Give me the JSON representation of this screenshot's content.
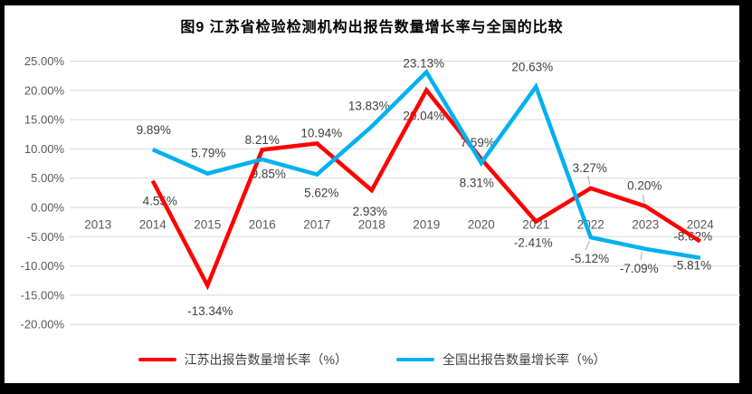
{
  "chart_data": {
    "type": "line",
    "title": "图9  江苏省检验检测机构出报告数量增长率与全国的比较",
    "categories": [
      "2013",
      "2014",
      "2015",
      "2016",
      "2017",
      "2018",
      "2019",
      "2020",
      "2021",
      "2022",
      "2023",
      "2024"
    ],
    "y_axis": {
      "min": -20,
      "max": 25,
      "step": 5,
      "ticks": [
        {
          "value": 25,
          "label": "25.00%"
        },
        {
          "value": 20,
          "label": "20.00%"
        },
        {
          "value": 15,
          "label": "15.00%"
        },
        {
          "value": 10,
          "label": "10.00%"
        },
        {
          "value": 5,
          "label": "5.00%"
        },
        {
          "value": 0,
          "label": "0.00%"
        },
        {
          "value": -5,
          "label": "-5.00%"
        },
        {
          "value": -10,
          "label": "-10.00%"
        },
        {
          "value": -15,
          "label": "-15.00%"
        },
        {
          "value": -20,
          "label": "-20.00%"
        }
      ]
    },
    "grid": true,
    "legend_position": "bottom",
    "series": [
      {
        "id": "jiangsu",
        "name": "江苏出报告数量增长率（%）",
        "color": "#FF0000",
        "points": [
          {
            "year": "2014",
            "value": 4.55,
            "label": "4.55%",
            "label_offset": [
              8,
              27
            ]
          },
          {
            "year": "2015",
            "value": -13.34,
            "label": "-13.34%",
            "label_offset": [
              3,
              33
            ]
          },
          {
            "year": "2016",
            "value": 9.85,
            "label": "9.85%",
            "label_offset": [
              7,
              31
            ]
          },
          {
            "year": "2017",
            "value": 10.94,
            "label": "10.94%",
            "label_offset": [
              5,
              -7
            ]
          },
          {
            "year": "2018",
            "value": 2.93,
            "label": "2.93%",
            "label_offset": [
              -2,
              28
            ]
          },
          {
            "year": "2019",
            "value": 20.04,
            "label": "20.04%",
            "label_offset": [
              -3,
              33
            ]
          },
          {
            "year": "2020",
            "value": 8.31,
            "label": "8.31%",
            "label_offset": [
              -5,
              31
            ]
          },
          {
            "year": "2021",
            "value": -2.41,
            "label": "-2.41%",
            "label_offset": [
              -3,
              28
            ]
          },
          {
            "year": "2022",
            "value": 3.27,
            "label": "3.27%",
            "label_offset": [
              -1,
              -18
            ],
            "leader": [
              -1,
              -4,
              -3,
              -14
            ]
          },
          {
            "year": "2023",
            "value": 0.2,
            "label": "0.20%",
            "label_offset": [
              -1,
              -18
            ],
            "leader": [
              -1,
              -3,
              -3,
              -13
            ]
          },
          {
            "year": "2024",
            "value": -5.81,
            "label": "-5.81%",
            "label_offset": [
              -9,
              31
            ]
          }
        ]
      },
      {
        "id": "national",
        "name": "全国出报告数量增长率（%）",
        "color": "#00B0F0",
        "points": [
          {
            "year": "2014",
            "value": 9.89,
            "label": "9.89%",
            "label_offset": [
              1,
              -17
            ]
          },
          {
            "year": "2015",
            "value": 5.79,
            "label": "5.79%",
            "label_offset": [
              1,
              -18
            ]
          },
          {
            "year": "2016",
            "value": 8.21,
            "label": "8.21%",
            "label_offset": [
              0,
              -17
            ]
          },
          {
            "year": "2017",
            "value": 5.62,
            "label": "5.62%",
            "label_offset": [
              5,
              25
            ]
          },
          {
            "year": "2018",
            "value": 13.83,
            "label": "13.83%",
            "label_offset": [
              -3,
              -18
            ]
          },
          {
            "year": "2019",
            "value": 23.13,
            "label": "23.13%",
            "label_offset": [
              -3,
              -5
            ]
          },
          {
            "year": "2020",
            "value": 7.59,
            "label": "7.59%",
            "label_offset": [
              -4,
              -18
            ]
          },
          {
            "year": "2021",
            "value": 20.63,
            "label": "20.63%",
            "label_offset": [
              -4,
              -17
            ]
          },
          {
            "year": "2022",
            "value": -5.12,
            "label": "-5.12%",
            "label_offset": [
              -1,
              28
            ],
            "leader": [
              -1,
              4,
              -6,
              14
            ]
          },
          {
            "year": "2023",
            "value": -7.09,
            "label": "-7.09%",
            "label_offset": [
              -7,
              26
            ],
            "leader": [
              -4,
              3,
              -5,
              12
            ]
          },
          {
            "year": "2024",
            "value": -8.62,
            "label": "-8.62%",
            "label_offset": [
              -8,
              -19
            ]
          }
        ]
      }
    ]
  }
}
